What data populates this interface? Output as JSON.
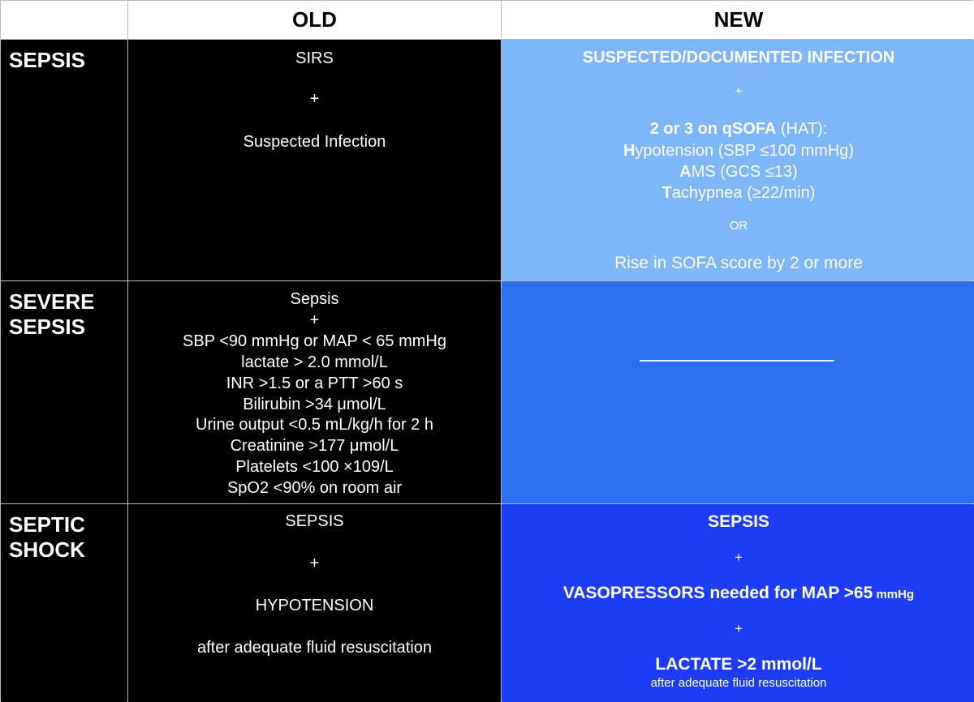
{
  "header": {
    "old": "OLD",
    "new": "NEW"
  },
  "sepsis": {
    "label": "SEPSIS",
    "old": {
      "l1": "SIRS",
      "plus": "+",
      "l2": "Suspected Infection"
    },
    "new": {
      "infection": "SUSPECTED/DOCUMENTED INFECTION",
      "plus": "+",
      "qsofa_bold": "2 or 3 on qSOFA",
      "qsofa_rest": " (HAT):",
      "h_bold": "H",
      "h_rest": "ypotension (SBP ≤100 mmHg)",
      "a_bold": "A",
      "a_rest": "MS (GCS ≤13)",
      "t_bold": "T",
      "t_rest": "achypnea (≥22/min)",
      "or": "OR",
      "rise": "Rise in SOFA score by 2 or more"
    }
  },
  "severe": {
    "label_l1": "SEVERE",
    "label_l2": "SEPSIS",
    "old": [
      "Sepsis",
      "+",
      "SBP <90 mmHg or MAP < 65 mmHg",
      "lactate > 2.0 mmol/L",
      "INR >1.5 or a PTT >60 s",
      "Bilirubin >34 μmol/L",
      "Urine output <0.5 mL/kg/h for 2 h",
      "Creatinine >177 μmol/L",
      "Platelets <100 ×109/L",
      "SpO2 <90% on room air"
    ]
  },
  "shock": {
    "label_l1": "SEPTIC",
    "label_l2": "SHOCK",
    "old": {
      "l1": "SEPSIS",
      "plus": "+",
      "l2": "HYPOTENSION",
      "l3": "after adequate fluid resuscitation"
    },
    "new": {
      "l1": "SEPSIS",
      "plus1": "+",
      "vaso": "VASOPRESSORS needed for MAP >65",
      "vaso_unit": " mmHg",
      "plus2": "+",
      "lactate": "LACTATE >2 mmol/L",
      "after": "after adequate fluid resuscitation"
    }
  },
  "colors": {
    "new_sepsis": "#7cb7f7",
    "new_severe": "#2b6eee",
    "new_shock": "#1d3df5",
    "old_bg": "#000000"
  }
}
